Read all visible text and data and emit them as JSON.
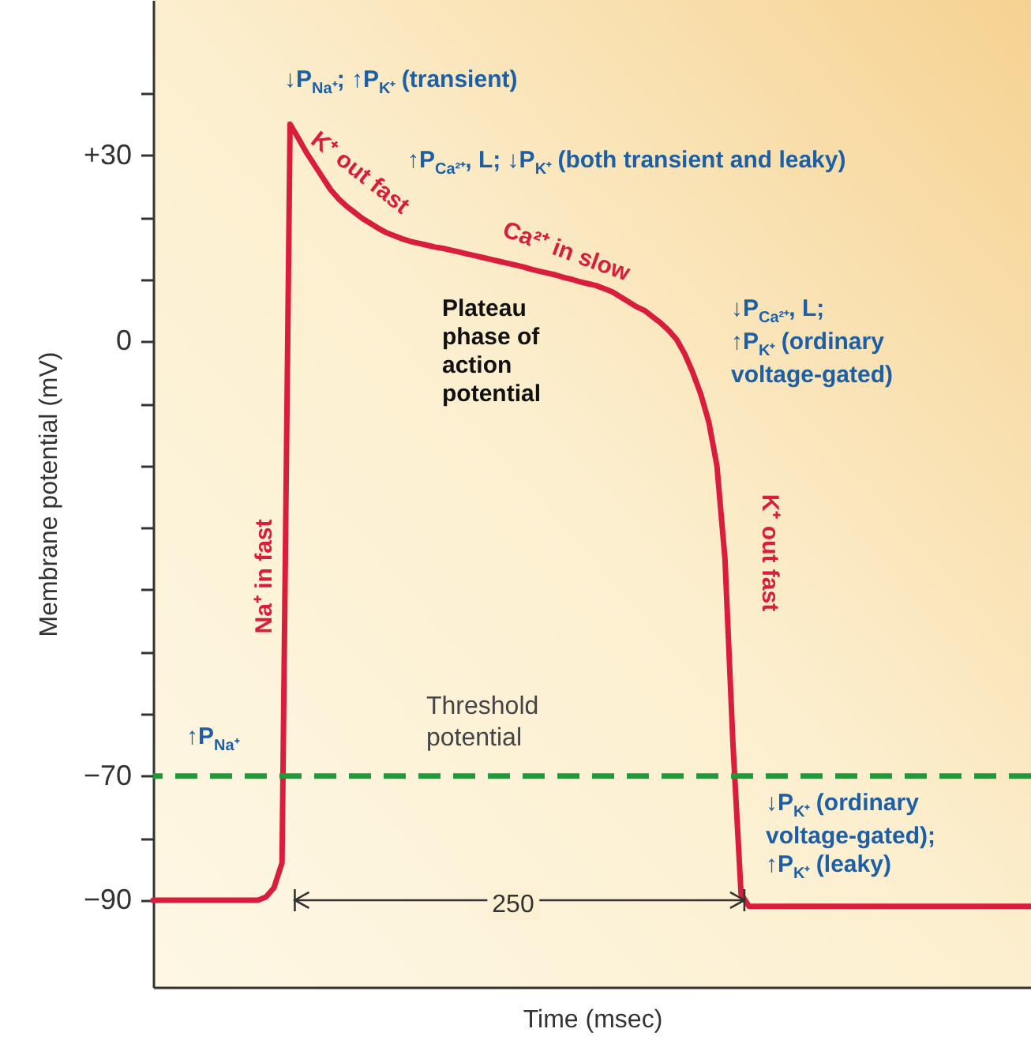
{
  "chart_data": {
    "type": "line",
    "xlabel": "Time (msec)",
    "ylabel": "Membrane potential (mV)",
    "categories": [
      null,
      null,
      null,
      null,
      null,
      null,
      null,
      null,
      null,
      null,
      null,
      null,
      null,
      null,
      null,
      null,
      null,
      null,
      null,
      null,
      null,
      null,
      null,
      null,
      null,
      null,
      null,
      null,
      null,
      null,
      null,
      null,
      null,
      null,
      null,
      null,
      null,
      null,
      null,
      null,
      null,
      null,
      null,
      null,
      null,
      null,
      null,
      null,
      null,
      null,
      null,
      null,
      null,
      null,
      null,
      null,
      null,
      null,
      null,
      null,
      null,
      null,
      null,
      null,
      null,
      null,
      null,
      null,
      null,
      null,
      null,
      null,
      null,
      null,
      null,
      null,
      null,
      null,
      null,
      null,
      null,
      null,
      null,
      null,
      null,
      null,
      null,
      null,
      null,
      null,
      null,
      null,
      null,
      null,
      null,
      null,
      null,
      null,
      null,
      null,
      null,
      null,
      null,
      null,
      null,
      null,
      null,
      null,
      null,
      null
    ],
    "ylim": [
      -104,
      55
    ],
    "yticks": [
      {
        "value": 40,
        "label": null
      },
      {
        "value": 30,
        "label": "+30"
      },
      {
        "value": 20,
        "label": null
      },
      {
        "value": 10,
        "label": null
      },
      {
        "value": 0,
        "label": "0"
      },
      {
        "value": -10,
        "label": null
      },
      {
        "value": -20,
        "label": null
      },
      {
        "value": -30,
        "label": null
      },
      {
        "value": -40,
        "label": null
      },
      {
        "value": -50,
        "label": null
      },
      {
        "value": -60,
        "label": null
      },
      {
        "value": -70,
        "label": "−70"
      },
      {
        "value": -80,
        "label": null
      },
      {
        "value": -90,
        "label": "−90"
      }
    ],
    "tick_labels": "y",
    "line_style": "solid",
    "series": [
      {
        "color": "#d81e3c",
        "values": [
          -90,
          -90,
          -90,
          -90,
          -90,
          -90,
          -90,
          -90,
          -90,
          -90,
          -90,
          -90,
          -90,
          -90,
          -89.5,
          -88,
          -84,
          35,
          32.8,
          30.5,
          28.5,
          26.5,
          24.5,
          23,
          21.8,
          20.8,
          19.8,
          19,
          18.2,
          17.5,
          17,
          16.5,
          16.1,
          15.8,
          15.5,
          15.2,
          15,
          14.7,
          14.4,
          14.1,
          13.8,
          13.5,
          13.2,
          12.9,
          12.6,
          12.3,
          12,
          11.6,
          11.3,
          11,
          10.7,
          10.3,
          10,
          9.6,
          9.3,
          9,
          8.5,
          8,
          7.2,
          6.4,
          5.6,
          5,
          4,
          3,
          1.8,
          0.3,
          -2,
          -5,
          -8.5,
          -13,
          -20,
          -35,
          -65,
          -89,
          -91,
          -91,
          -91,
          -91,
          -91,
          -91,
          -91,
          -91,
          -91,
          -91,
          -91,
          -91,
          -91,
          -91,
          -91,
          -91,
          -91,
          -91,
          -91,
          -91,
          -91,
          -91,
          -91,
          -91,
          -91,
          -91,
          -91,
          -91,
          -91,
          -91,
          -91,
          -91,
          -91,
          -91,
          -91,
          -91
        ]
      }
    ],
    "ref_lines": [
      {
        "axis": "y",
        "value": -70,
        "label": "Threshold potential",
        "color": "#1f9a3a",
        "line_style": "dashed"
      }
    ],
    "annotations": [
      "↓P$_{Na⁺}$; ↑P$_{K⁺}$ (transient)",
      "K⁺ out fast",
      "↑P$_{Ca²⁺}$, L; ↓P$_{K⁺}$ (both transient and leaky)",
      "Ca²⁺ in slow",
      "Plateau\nphase of\naction\npotential",
      "↓P$_{Ca²⁺}$, L;\n↑P$_{K⁺}$ (ordinary\nvoltage-gated)",
      "Na⁺ in fast",
      "K⁺ out fast",
      "↑P$_{Na⁺}$",
      "↓P$_{K⁺}$ (ordinary\nvoltage-gated);\n↑P$_{K⁺}$ (leaky)",
      "250"
    ]
  }
}
